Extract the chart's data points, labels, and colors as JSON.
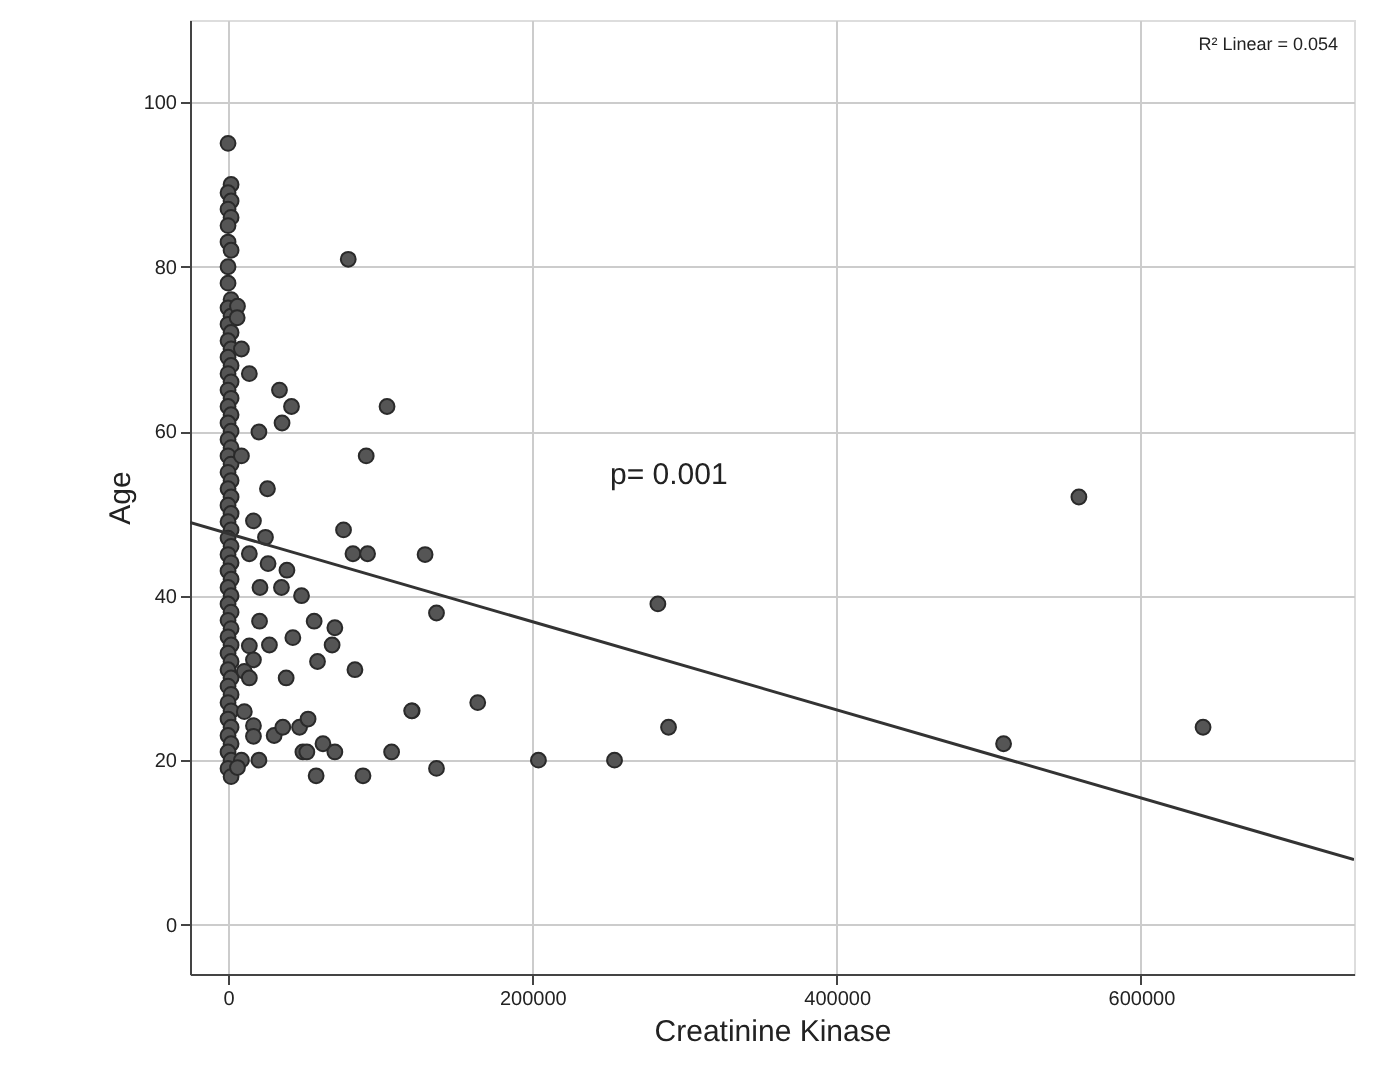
{
  "chart_data": {
    "type": "scatter",
    "xlabel": "Creatinine Kinase",
    "ylabel": "Age",
    "annotations": [
      "R² Linear = 0.054",
      "p= 0.001"
    ],
    "xlim": [
      -25000,
      740000
    ],
    "ylim": [
      -6,
      110
    ],
    "xticks": [
      0,
      200000,
      400000,
      600000
    ],
    "yticks": [
      0,
      20,
      40,
      60,
      80,
      100
    ],
    "grid": true,
    "series": [
      {
        "color": "#555555",
        "marker": "circle",
        "x": [
          0,
          2000,
          0,
          2000,
          0,
          2000,
          0,
          0,
          2000,
          0,
          0,
          2000,
          0,
          2000,
          0,
          2000,
          0,
          2000,
          0,
          2000,
          0,
          2000,
          0,
          2000,
          0,
          2000,
          0,
          2000,
          0,
          2000,
          0,
          2000,
          0,
          2000,
          0,
          2000,
          0,
          2000,
          0,
          2000,
          0,
          2000,
          0,
          2000,
          0,
          2000,
          0,
          2000,
          0,
          2000,
          0,
          2000,
          0,
          2000,
          0,
          2000,
          0,
          2000,
          0,
          2000,
          0,
          2000,
          0,
          2000,
          0,
          2000,
          0,
          2000,
          0,
          2000,
          6200,
          6000,
          79000,
          8800,
          14000,
          33800,
          41700,
          104500,
          35500,
          20300,
          90800,
          8800,
          25900,
          16700,
          24600,
          75900,
          82100,
          91700,
          129500,
          26300,
          38700,
          14000,
          21000,
          35100,
          48300,
          137000,
          20700,
          56600,
          70200,
          42600,
          68400,
          27200,
          58800,
          83400,
          14000,
          38200,
          121000,
          164100,
          120700,
          137000,
          204000,
          254000,
          282500,
          289500,
          509700,
          559200,
          640800,
          16700,
          10700,
          14000,
          10700,
          16700,
          16700,
          30300,
          36000,
          47000,
          52600,
          49200,
          51800,
          62400,
          70200,
          107500,
          20300,
          57900,
          88700,
          8800,
          6200
        ],
        "values": [
          95,
          90,
          89,
          88,
          87,
          86,
          85,
          83,
          82,
          80,
          78,
          76,
          75,
          74,
          73,
          72,
          71,
          70,
          69,
          68,
          67,
          66,
          65,
          64,
          63,
          62,
          61,
          60,
          59,
          58,
          57,
          56,
          55,
          54,
          53,
          52,
          51,
          50,
          49,
          48,
          47,
          46,
          45,
          44,
          43,
          42,
          41,
          40,
          39,
          38,
          37,
          36,
          35,
          34,
          33,
          32,
          31,
          30,
          29,
          28,
          27,
          26,
          25,
          24,
          23,
          22,
          21,
          20,
          19,
          18,
          75.2,
          73.8,
          80.9,
          70,
          67,
          65,
          63,
          63,
          61,
          59.9,
          57,
          57,
          53,
          49.1,
          47.1,
          48,
          45.1,
          45.1,
          45,
          43.9,
          43.1,
          45.1,
          41,
          41,
          40,
          37.9,
          36.9,
          36.9,
          36.1,
          34.9,
          34,
          34,
          32,
          31,
          33.9,
          30,
          26,
          27,
          26,
          19,
          20,
          20,
          39,
          24,
          22,
          52,
          24,
          32.2,
          30.8,
          30,
          25.9,
          24.2,
          22.9,
          23,
          24,
          24,
          25,
          21,
          21,
          22,
          21,
          21,
          20,
          18.1,
          18.1,
          20,
          19.1
        ]
      },
      {
        "type": "line",
        "color": "#333333",
        "marker": "none",
        "line_style": "solid",
        "x": [
          -25000,
          740000
        ],
        "values": [
          48.9,
          7.9
        ]
      }
    ]
  }
}
